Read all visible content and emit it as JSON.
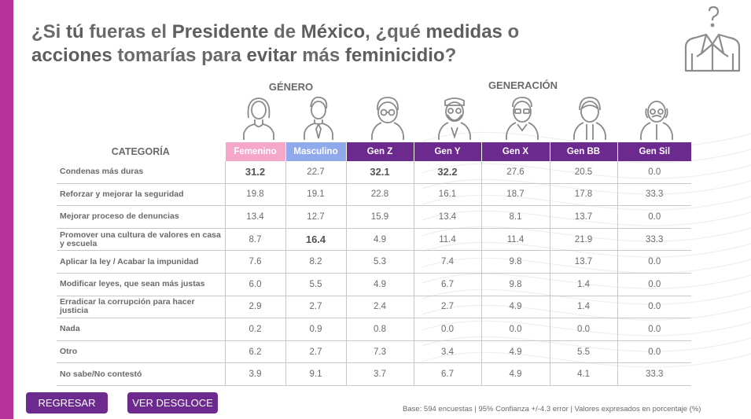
{
  "title": {
    "parts": [
      {
        "t": "¿Si ",
        "b": false
      },
      {
        "t": "tú",
        "b": true
      },
      {
        "t": " fueras el ",
        "b": false
      },
      {
        "t": "Presidente",
        "b": true
      },
      {
        "t": " de ",
        "b": false
      },
      {
        "t": "México",
        "b": true
      },
      {
        "t": ", ¿qué ",
        "b": false
      },
      {
        "t": "medidas",
        "b": true
      },
      {
        "t": " o",
        "b": false
      },
      {
        "t": "\n",
        "b": false
      },
      {
        "t": "acciones",
        "b": true
      },
      {
        "t": " tomarías para ",
        "b": false
      },
      {
        "t": "evitar",
        "b": true
      },
      {
        "t": " más ",
        "b": false
      },
      {
        "t": "feminicidio",
        "b": true
      },
      {
        "t": "?",
        "b": false
      }
    ]
  },
  "headers": {
    "genero": "GÉNERO",
    "generacion": "GENERACIÓN",
    "categoria": "CATEGORÍA"
  },
  "columns": [
    {
      "label": "Femenino",
      "color": "#f4a7c9",
      "avatar": "woman-icon"
    },
    {
      "label": "Masculino",
      "color": "#8fa9ea",
      "avatar": "man-tie-icon"
    },
    {
      "label": "Gen Z",
      "color": "#6c2a8e",
      "avatar": "young-glasses-icon"
    },
    {
      "label": "Gen Y",
      "color": "#6c2a8e",
      "avatar": "man-beard-icon"
    },
    {
      "label": "Gen X",
      "color": "#6c2a8e",
      "avatar": "man-glasses-icon"
    },
    {
      "label": "Gen BB",
      "color": "#6c2a8e",
      "avatar": "older-man-icon"
    },
    {
      "label": "Gen Sil",
      "color": "#6c2a8e",
      "avatar": "elder-man-icon"
    }
  ],
  "rows": [
    {
      "label": "Condenas más duras",
      "values": [
        "31.2",
        "22.7",
        "32.1",
        "32.2",
        "27.6",
        "20.5",
        "0.0"
      ],
      "bold": [
        0,
        2,
        3
      ]
    },
    {
      "label": "Reforzar y mejorar la seguridad",
      "values": [
        "19.8",
        "19.1",
        "22.8",
        "16.1",
        "18.7",
        "17.8",
        "33.3"
      ],
      "bold": []
    },
    {
      "label": "Mejorar proceso de denuncias",
      "values": [
        "13.4",
        "12.7",
        "15.9",
        "13.4",
        "8.1",
        "13.7",
        "0.0"
      ],
      "bold": []
    },
    {
      "label": "Promover una cultura de valores en casa y escuela",
      "values": [
        "8.7",
        "16.4",
        "4.9",
        "11.4",
        "11.4",
        "21.9",
        "33.3"
      ],
      "bold": [
        1
      ]
    },
    {
      "label": "Aplicar la ley / Acabar la impunidad",
      "values": [
        "7.6",
        "8.2",
        "5.3",
        "7.4",
        "9.8",
        "13.7",
        "0.0"
      ],
      "bold": []
    },
    {
      "label": "Modificar leyes, que sean más justas",
      "values": [
        "6.0",
        "5.5",
        "4.9",
        "6.7",
        "9.8",
        "1.4",
        "0.0"
      ],
      "bold": []
    },
    {
      "label": "Erradicar la corrupción para hacer justicia",
      "values": [
        "2.9",
        "2.7",
        "2.4",
        "2.7",
        "4.9",
        "1.4",
        "0.0"
      ],
      "bold": []
    },
    {
      "label": "Nada",
      "values": [
        "0.2",
        "0.9",
        "0.8",
        "0.0",
        "0.0",
        "0.0",
        "0.0"
      ],
      "bold": []
    },
    {
      "label": "Otro",
      "values": [
        "6.2",
        "2.7",
        "7.3",
        "3.4",
        "4.9",
        "5.5",
        "0.0"
      ],
      "bold": []
    },
    {
      "label": "No sabe/No contestó",
      "values": [
        "3.9",
        "9.1",
        "3.7",
        "6.7",
        "4.9",
        "4.1",
        "33.3"
      ],
      "bold": []
    }
  ],
  "buttons": {
    "back": "REGRESAR",
    "breakdown": "VER DESGLOCE"
  },
  "footnote": "Base: 594 encuestas  |  95% Confianza +/-4.3 error  |  Valores expresados en porcentaje (%)",
  "colors": {
    "accent": "#6c2a8e",
    "sidebar": "#b9329b",
    "female": "#f4a7c9",
    "male": "#8fa9ea"
  },
  "icons": {
    "corner": "suit-question-icon"
  }
}
